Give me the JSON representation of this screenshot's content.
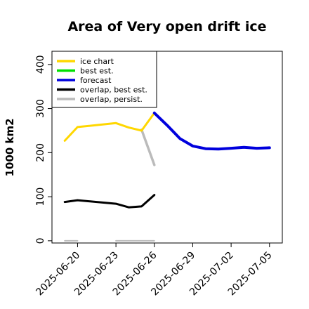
{
  "chart_data": {
    "type": "line",
    "title": "Area of Very open drift ice",
    "xlabel": "",
    "ylabel": "1000 km2",
    "ylim": [
      -5,
      430
    ],
    "yticks": [
      0,
      100,
      200,
      300,
      400
    ],
    "xlim": [
      "2025-06-18",
      "2025-07-06"
    ],
    "xticks": [
      {
        "label": "2025-06-20",
        "color": "#000000"
      },
      {
        "label": "2025-06-23",
        "color": "#000000"
      },
      {
        "label": "2025-06-26",
        "color": "#228B22"
      },
      {
        "label": "2025-06-29",
        "color": "#000000"
      },
      {
        "label": "2025-07-02",
        "color": "#000000"
      },
      {
        "label": "2025-07-05",
        "color": "#000000"
      }
    ],
    "grid": false,
    "legend_position": "top-left",
    "series": [
      {
        "name": "ice chart",
        "color": "#FFD700",
        "x": [
          "2025-06-19",
          "2025-06-20",
          "2025-06-23",
          "2025-06-24",
          "2025-06-25",
          "2025-06-26"
        ],
        "values": [
          227,
          258,
          267,
          257,
          250,
          290
        ]
      },
      {
        "name": "best est.",
        "color": "#00E000",
        "x": [],
        "values": []
      },
      {
        "name": "forecast",
        "color": "#0000DD",
        "x": [
          "2025-06-26",
          "2025-06-27",
          "2025-06-28",
          "2025-06-29",
          "2025-06-30",
          "2025-07-01",
          "2025-07-02",
          "2025-07-03",
          "2025-07-04",
          "2025-07-05"
        ],
        "values": [
          290,
          262,
          232,
          215,
          209,
          208,
          210,
          212,
          210,
          211
        ]
      },
      {
        "name": "overlap, best est.",
        "color": "#000000",
        "x": [
          "2025-06-19",
          "2025-06-20",
          "2025-06-23",
          "2025-06-24",
          "2025-06-25",
          "2025-06-26"
        ],
        "values": [
          88,
          92,
          84,
          76,
          78,
          104
        ]
      },
      {
        "name": "overlap, persist.",
        "color": "#BBBBBB",
        "segments": [
          {
            "x": [
              "2025-06-25",
              "2025-06-26"
            ],
            "values": [
              252,
              172
            ]
          },
          {
            "x": [
              "2025-06-19",
              "2025-06-20"
            ],
            "values": [
              0,
              0
            ]
          },
          {
            "x": [
              "2025-06-23",
              "2025-06-26"
            ],
            "values": [
              0,
              0
            ]
          }
        ]
      }
    ]
  }
}
